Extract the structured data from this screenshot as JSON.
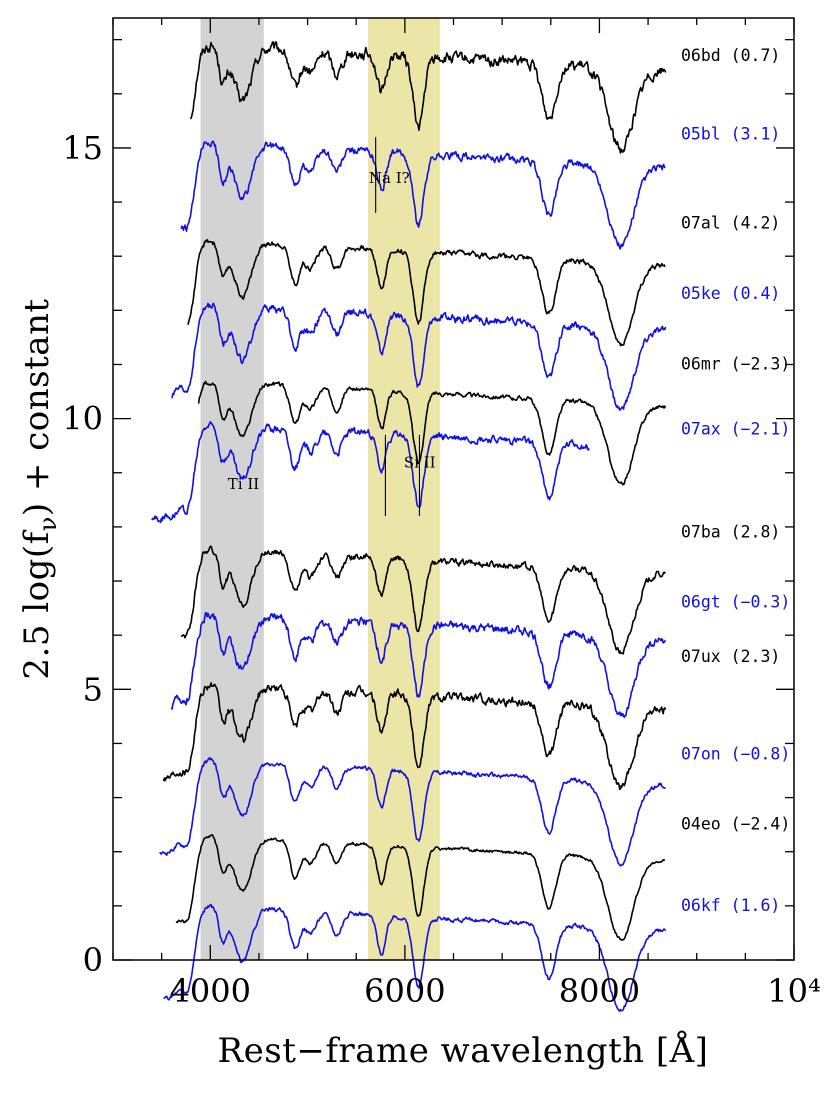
{
  "chart_data": {
    "type": "line",
    "xlabel": "Rest−frame wavelength [Å]",
    "ylabel_parts": {
      "prefix": "2.5 log(f",
      "subscript": "ν",
      "suffix": ") + constant"
    },
    "xlim": [
      3000,
      10000
    ],
    "ylim": [
      0,
      17.4
    ],
    "x_ticks": [
      {
        "value": 4000,
        "label": "4000"
      },
      {
        "value": 6000,
        "label": "6000"
      },
      {
        "value": 8000,
        "label": "8000"
      },
      {
        "value": 10000,
        "label": "10⁴"
      }
    ],
    "y_ticks": [
      {
        "value": 0,
        "label": "0"
      },
      {
        "value": 5,
        "label": "5"
      },
      {
        "value": 10,
        "label": "10"
      },
      {
        "value": 15,
        "label": "15"
      }
    ],
    "shaded_bands": [
      {
        "x": [
          3900,
          4550
        ],
        "color": "#d3d3d3"
      },
      {
        "x": [
          5620,
          6360
        ],
        "color": "#ece5a8"
      }
    ],
    "annotations": [
      {
        "text": "Na I?",
        "x": 5630,
        "y": 14.35,
        "marks": [
          {
            "x": 5700,
            "y1": 13.8,
            "y2": 15.2
          }
        ]
      },
      {
        "text": "Si II",
        "x": 5990,
        "y": 9.1,
        "marks": [
          {
            "x": 5800,
            "y1": 9.7,
            "y2": 8.2
          },
          {
            "x": 6150,
            "y1": 9.7,
            "y2": 8.2
          }
        ]
      },
      {
        "text": "Ti II",
        "x": 4180,
        "y": 8.7,
        "marks": []
      }
    ],
    "series": [
      {
        "name": "06bd (0.7)",
        "color": "#000000",
        "x_range": [
          3800,
          8680
        ],
        "offset": 16.8,
        "noise": 0.2,
        "label_y": 16.7
      },
      {
        "name": "05bl (3.1)",
        "color": "#1010e0",
        "x_range": [
          3700,
          8680
        ],
        "offset": 15.0,
        "noise": 0.14,
        "label_y": 15.25
      },
      {
        "name": "07al (4.2)",
        "color": "#000000",
        "x_range": [
          3770,
          8680
        ],
        "offset": 13.2,
        "noise": 0.1,
        "label_y": 13.6
      },
      {
        "name": "05ke (0.4)",
        "color": "#1010e0",
        "x_range": [
          3600,
          8680
        ],
        "offset": 12.0,
        "noise": 0.14,
        "label_y": 12.3
      },
      {
        "name": "06mr (−2.3)",
        "color": "#000000",
        "x_range": [
          3880,
          8680
        ],
        "offset": 10.6,
        "noise": 0.08,
        "label_y": 11.0
      },
      {
        "name": "07ax (−2.1)",
        "color": "#1010e0",
        "x_range": [
          3400,
          7900
        ],
        "offset": 9.8,
        "noise": 0.14,
        "label_y": 9.8
      },
      {
        "name": "07ba (2.8)",
        "color": "#000000",
        "x_range": [
          3700,
          8680
        ],
        "offset": 7.5,
        "noise": 0.12,
        "label_y": 7.9
      },
      {
        "name": "06gt (−0.3)",
        "color": "#1010e0",
        "x_range": [
          3600,
          8680
        ],
        "offset": 6.3,
        "noise": 0.16,
        "label_y": 6.6
      },
      {
        "name": "07ux (2.3)",
        "color": "#000000",
        "x_range": [
          3520,
          8680
        ],
        "offset": 5.0,
        "noise": 0.16,
        "label_y": 5.6
      },
      {
        "name": "07on (−0.8)",
        "color": "#1010e0",
        "x_range": [
          3480,
          8680
        ],
        "offset": 3.6,
        "noise": 0.08,
        "label_y": 3.8
      },
      {
        "name": "04eo (−2.4)",
        "color": "#000000",
        "x_range": [
          3650,
          8680
        ],
        "offset": 2.2,
        "noise": 0.06,
        "label_y": 2.5
      },
      {
        "name": "06kf (1.6)",
        "color": "#1010e0",
        "x_range": [
          3520,
          8680
        ],
        "offset": 0.9,
        "noise": 0.08,
        "label_y": 1.0
      }
    ]
  }
}
